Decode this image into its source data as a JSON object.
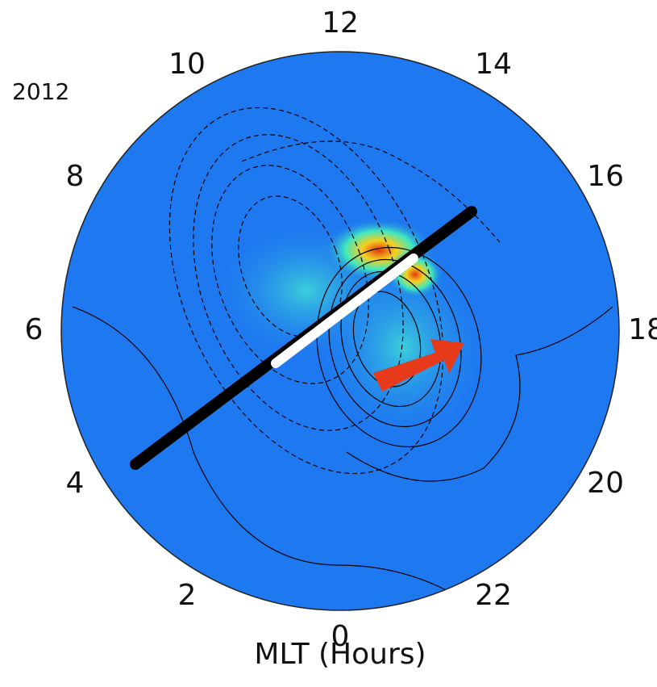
{
  "figure": {
    "year_label": "2012",
    "hour_ticks": [
      0,
      2,
      4,
      6,
      8,
      10,
      12,
      14,
      16,
      18,
      20,
      22
    ],
    "axis_label": "MLT (Hours)"
  }
}
